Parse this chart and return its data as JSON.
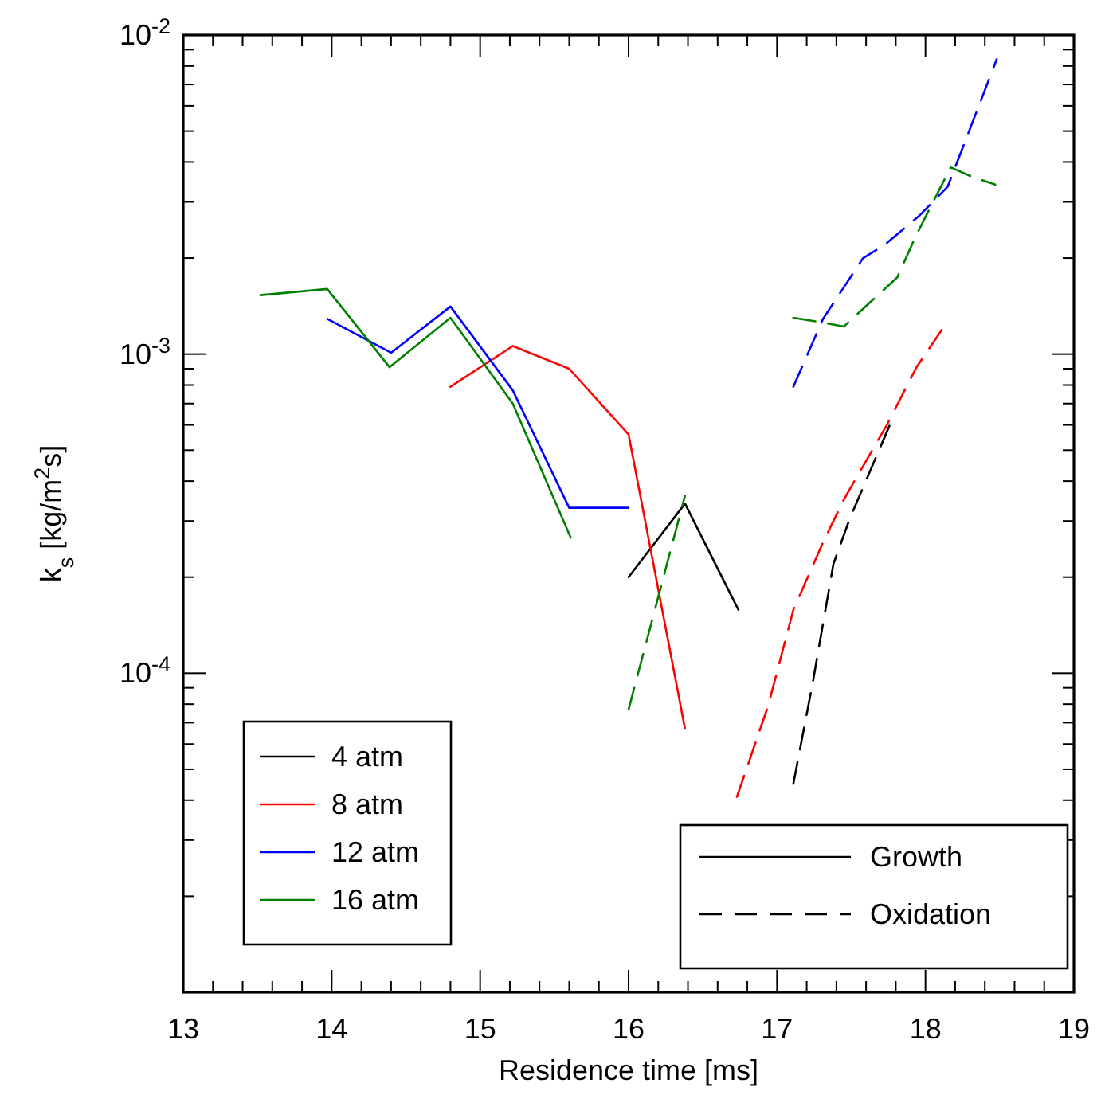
{
  "chart_data": {
    "type": "line",
    "xlabel": "Residence time [ms]",
    "ylabel": "k$_{s}$ [kg/m$^{2}$s]",
    "log": "y",
    "xlim": [
      13,
      19
    ],
    "ylim": [
      1e-05,
      0.01
    ],
    "xticks": [
      13,
      {
        "value": 13.2,
        "label": null
      },
      {
        "value": 13.4,
        "label": null
      },
      {
        "value": 13.6,
        "label": null
      },
      {
        "value": 13.8,
        "label": null
      },
      14,
      {
        "value": 14.2,
        "label": null
      },
      {
        "value": 14.4,
        "label": null
      },
      {
        "value": 14.6,
        "label": null
      },
      {
        "value": 14.8,
        "label": null
      },
      15,
      {
        "value": 15.2,
        "label": null
      },
      {
        "value": 15.4,
        "label": null
      },
      {
        "value": 15.6,
        "label": null
      },
      {
        "value": 15.8,
        "label": null
      },
      16,
      {
        "value": 16.2,
        "label": null
      },
      {
        "value": 16.4,
        "label": null
      },
      {
        "value": 16.6,
        "label": null
      },
      {
        "value": 16.8,
        "label": null
      },
      17,
      {
        "value": 17.2,
        "label": null
      },
      {
        "value": 17.4,
        "label": null
      },
      {
        "value": 17.6,
        "label": null
      },
      {
        "value": 17.8,
        "label": null
      },
      18,
      {
        "value": 18.2,
        "label": null
      },
      {
        "value": 18.4,
        "label": null
      },
      {
        "value": 18.6,
        "label": null
      },
      {
        "value": 18.8,
        "label": null
      },
      19
    ],
    "yticks": [
      {
        "value": 2e-05,
        "label": null
      },
      {
        "value": 3e-05,
        "label": null
      },
      {
        "value": 4e-05,
        "label": null
      },
      {
        "value": 5e-05,
        "label": null
      },
      {
        "value": 6e-05,
        "label": null
      },
      {
        "value": 7e-05,
        "label": null
      },
      {
        "value": 8e-05,
        "label": null
      },
      {
        "value": 9e-05,
        "label": null
      },
      {
        "value": 0.0001,
        "label": "10$^{-4}$"
      },
      {
        "value": 0.0002,
        "label": null
      },
      {
        "value": 0.0003,
        "label": null
      },
      {
        "value": 0.0004,
        "label": null
      },
      {
        "value": 0.0005,
        "label": null
      },
      {
        "value": 0.0006,
        "label": null
      },
      {
        "value": 0.0007,
        "label": null
      },
      {
        "value": 0.0008,
        "label": null
      },
      {
        "value": 0.0009,
        "label": null
      },
      {
        "value": 0.001,
        "label": "10$^{-3}$"
      },
      {
        "value": 0.002,
        "label": null
      },
      {
        "value": 0.003,
        "label": null
      },
      {
        "value": 0.004,
        "label": null
      },
      {
        "value": 0.005,
        "label": null
      },
      {
        "value": 0.006,
        "label": null
      },
      {
        "value": 0.007,
        "label": null
      },
      {
        "value": 0.008,
        "label": null
      },
      {
        "value": 0.009,
        "label": null
      },
      {
        "value": 0.01,
        "label": "10$^{-2}$"
      }
    ],
    "legend": "bottom left",
    "annotations": [
      "Growth",
      "Oxidation"
    ],
    "series": [
      {
        "name": "4 atm",
        "color": "#000000",
        "line_style": "solid",
        "x": [
          16.0,
          16.38,
          16.74
        ],
        "values": [
          0.0002,
          0.00034,
          0.000158
        ]
      },
      {
        "name": "8 atm",
        "color": "#ff0000",
        "line_style": "solid",
        "x": [
          14.8,
          15.22,
          15.6,
          16.0,
          16.38
        ],
        "values": [
          0.00079,
          0.00106,
          0.0009,
          0.00056,
          6.7e-05
        ]
      },
      {
        "name": "12 atm",
        "color": "#0000ff",
        "line_style": "solid",
        "x": [
          13.97,
          14.4,
          14.8,
          15.22,
          15.6,
          16.0
        ],
        "values": [
          0.00129,
          0.00101,
          0.00141,
          0.00077,
          0.00033,
          0.00033
        ]
      },
      {
        "name": "16 atm",
        "color": "#008000",
        "line_style": "solid",
        "x": [
          13.52,
          13.97,
          14.39,
          14.8,
          15.22,
          15.61
        ],
        "values": [
          0.00153,
          0.0016,
          0.00091,
          0.0013,
          0.0007,
          0.000266
        ]
      },
      {
        "color": "#000000",
        "line_style": "dashed",
        "x": [
          17.11,
          17.24,
          17.38,
          17.49,
          17.76
        ],
        "values": [
          4.5e-05,
          9.3e-05,
          0.00022,
          0.000305,
          0.0006
        ]
      },
      {
        "color": "#ff0000",
        "line_style": "dashed",
        "x": [
          16.73,
          16.94,
          17.11,
          17.31,
          17.45,
          17.74,
          17.94,
          18.13
        ],
        "values": [
          4.1e-05,
          7.9e-05,
          0.000158,
          0.000257,
          0.00035,
          0.0006,
          0.00091,
          0.00123
        ]
      },
      {
        "color": "#0000ff",
        "line_style": "dashed",
        "x": [
          17.11,
          17.31,
          17.58,
          17.72,
          17.96,
          18.15,
          18.42,
          18.48
        ],
        "values": [
          0.00079,
          0.00129,
          0.002,
          0.00219,
          0.00272,
          0.00335,
          0.0071,
          0.0084
        ]
      },
      {
        "color": "#008000",
        "line_style": "dashed",
        "x": [
          16.0,
          16.38,
          16.7,
          17.11,
          17.29,
          17.45,
          17.81,
          17.94,
          18.17,
          18.31,
          18.47
        ],
        "values": [
          7.7e-05,
          0.00036,
          null,
          0.0013,
          0.00126,
          0.00122,
          0.00174,
          0.00237,
          0.00385,
          0.0036,
          0.0034
        ]
      }
    ]
  }
}
